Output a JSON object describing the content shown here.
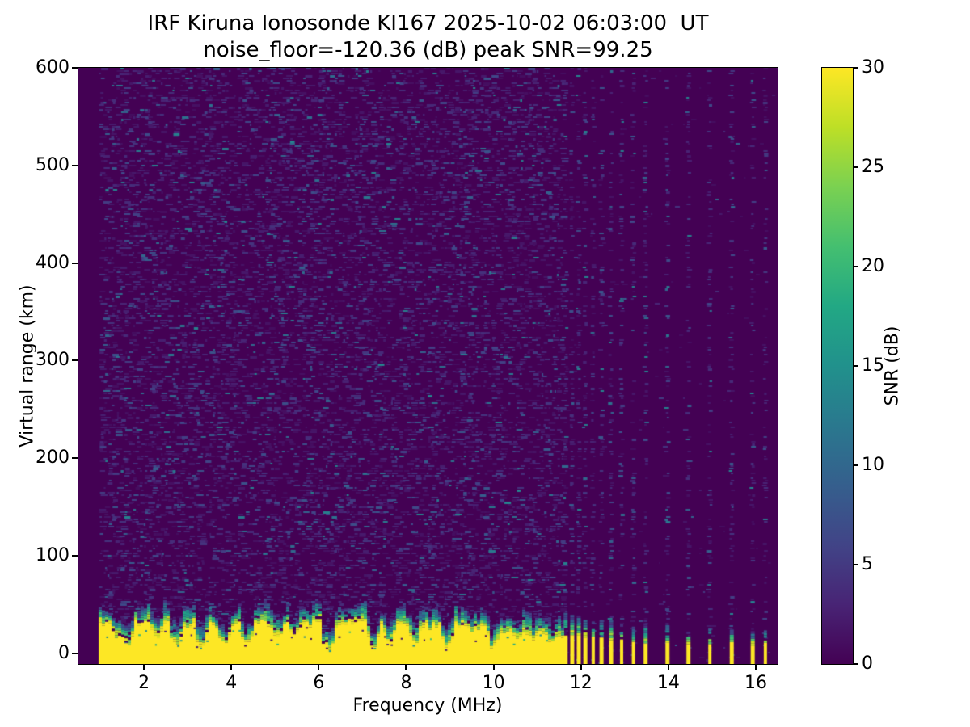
{
  "title": {
    "line1": "IRF Kiruna Ionosonde KI167 2025-10-02 06:03:00  UT",
    "line2": "noise_floor=-120.36 (dB) peak SNR=99.25"
  },
  "axes": {
    "xlabel": "Frequency (MHz)",
    "ylabel": "Virtual range (km)",
    "x_ticks": [
      2,
      4,
      6,
      8,
      10,
      12,
      14,
      16
    ],
    "y_ticks": [
      0,
      100,
      200,
      300,
      400,
      500,
      600
    ],
    "x_range": [
      0.5,
      16.5
    ],
    "y_range": [
      -11,
      600
    ]
  },
  "colorbar": {
    "label": "SNR (dB)",
    "ticks": [
      0,
      5,
      10,
      15,
      20,
      25,
      30
    ],
    "range": [
      0,
      30
    ],
    "colormap": "viridis",
    "stops": [
      {
        "t": 0.0,
        "color": "#440154"
      },
      {
        "t": 0.1,
        "color": "#482475"
      },
      {
        "t": 0.2,
        "color": "#414487"
      },
      {
        "t": 0.3,
        "color": "#355f8d"
      },
      {
        "t": 0.4,
        "color": "#2a788e"
      },
      {
        "t": 0.5,
        "color": "#21918c"
      },
      {
        "t": 0.6,
        "color": "#22a884"
      },
      {
        "t": 0.7,
        "color": "#44bf70"
      },
      {
        "t": 0.8,
        "color": "#7ad151"
      },
      {
        "t": 0.9,
        "color": "#bddf26"
      },
      {
        "t": 1.0,
        "color": "#fde725"
      }
    ]
  },
  "chart_data": {
    "type": "heatmap",
    "title": "IRF Kiruna Ionosonde KI167 2025-10-02 06:03:00  UT",
    "subtitle": "noise_floor=-120.36 (dB) peak SNR=99.25",
    "xlabel": "Frequency (MHz)",
    "ylabel": "Virtual range (km)",
    "x_range_mhz": [
      0.5,
      16.5
    ],
    "y_range_km": [
      -11,
      600
    ],
    "color_range_db": [
      0,
      30
    ],
    "colormap": "viridis",
    "metrics": {
      "station": "KI167",
      "timestamp_ut": "2025-10-02 06:03:00",
      "noise_floor_db": -120.36,
      "peak_snr_db": 99.25
    },
    "ground_echo_band": {
      "freq_start_mhz": 0.97,
      "freq_end_mhz": 11.56,
      "yellow_top_profile_km": [
        [
          1.0,
          31
        ],
        [
          1.5,
          33
        ],
        [
          2.0,
          30
        ],
        [
          3.0,
          29
        ],
        [
          4.0,
          30
        ],
        [
          4.6,
          32
        ],
        [
          5.2,
          31
        ],
        [
          6.0,
          30
        ],
        [
          7.0,
          30
        ],
        [
          8.0,
          30
        ],
        [
          8.6,
          28
        ],
        [
          9.3,
          26
        ],
        [
          10.0,
          25
        ],
        [
          10.6,
          23
        ],
        [
          11.0,
          21
        ],
        [
          11.56,
          19
        ]
      ],
      "green_extra_km": [
        9,
        22
      ],
      "notches": [
        [
          1.38,
          16
        ],
        [
          1.65,
          8
        ],
        [
          2.32,
          15
        ],
        [
          2.75,
          9
        ],
        [
          3.33,
          9
        ],
        [
          3.82,
          10
        ],
        [
          4.35,
          9
        ],
        [
          5.05,
          15
        ],
        [
          5.5,
          17
        ],
        [
          6.25,
          5
        ],
        [
          7.27,
          8
        ],
        [
          7.62,
          14
        ],
        [
          8.2,
          13
        ],
        [
          8.94,
          7
        ],
        [
          10.02,
          8
        ],
        [
          10.55,
          15
        ],
        [
          10.9,
          13
        ],
        [
          11.3,
          14
        ]
      ]
    },
    "interference_stripes": [
      {
        "f": 11.65,
        "w": 5,
        "yellow_km": 19,
        "green_km": 38
      },
      {
        "f": 11.8,
        "w": 5,
        "yellow_km": 18,
        "green_km": 40
      },
      {
        "f": 11.95,
        "w": 5,
        "yellow_km": 17,
        "green_km": 36
      },
      {
        "f": 12.1,
        "w": 5,
        "yellow_km": 17,
        "green_km": 34
      },
      {
        "f": 12.28,
        "w": 4,
        "yellow_km": 16,
        "green_km": 35
      },
      {
        "f": 12.47,
        "w": 5,
        "yellow_km": 15,
        "green_km": 33
      },
      {
        "f": 12.69,
        "w": 5,
        "yellow_km": 14,
        "green_km": 32
      },
      {
        "f": 12.93,
        "w": 4,
        "yellow_km": 13,
        "green_km": 30
      },
      {
        "f": 13.2,
        "w": 4,
        "yellow_km": 12,
        "green_km": 26
      },
      {
        "f": 13.48,
        "w": 5,
        "yellow_km": 12,
        "green_km": 28
      },
      {
        "f": 13.98,
        "w": 5,
        "yellow_km": 11,
        "green_km": 26
      },
      {
        "f": 14.46,
        "w": 5,
        "yellow_km": 10,
        "green_km": 24
      },
      {
        "f": 14.95,
        "w": 4,
        "yellow_km": 10,
        "green_km": 24
      },
      {
        "f": 15.45,
        "w": 5,
        "yellow_km": 10,
        "green_km": 26
      },
      {
        "f": 15.93,
        "w": 5,
        "yellow_km": 9,
        "green_km": 24
      },
      {
        "f": 16.22,
        "w": 4,
        "yellow_km": 9,
        "green_km": 22
      }
    ],
    "noise": {
      "dense_region_end_mhz": 11.56,
      "density": 0.5,
      "mean_snr_db": 2.4,
      "stripe_density": 0.42,
      "stripe_mean_snr_db": 3.0,
      "sparse_density": 0.012
    },
    "seed": 1234
  }
}
